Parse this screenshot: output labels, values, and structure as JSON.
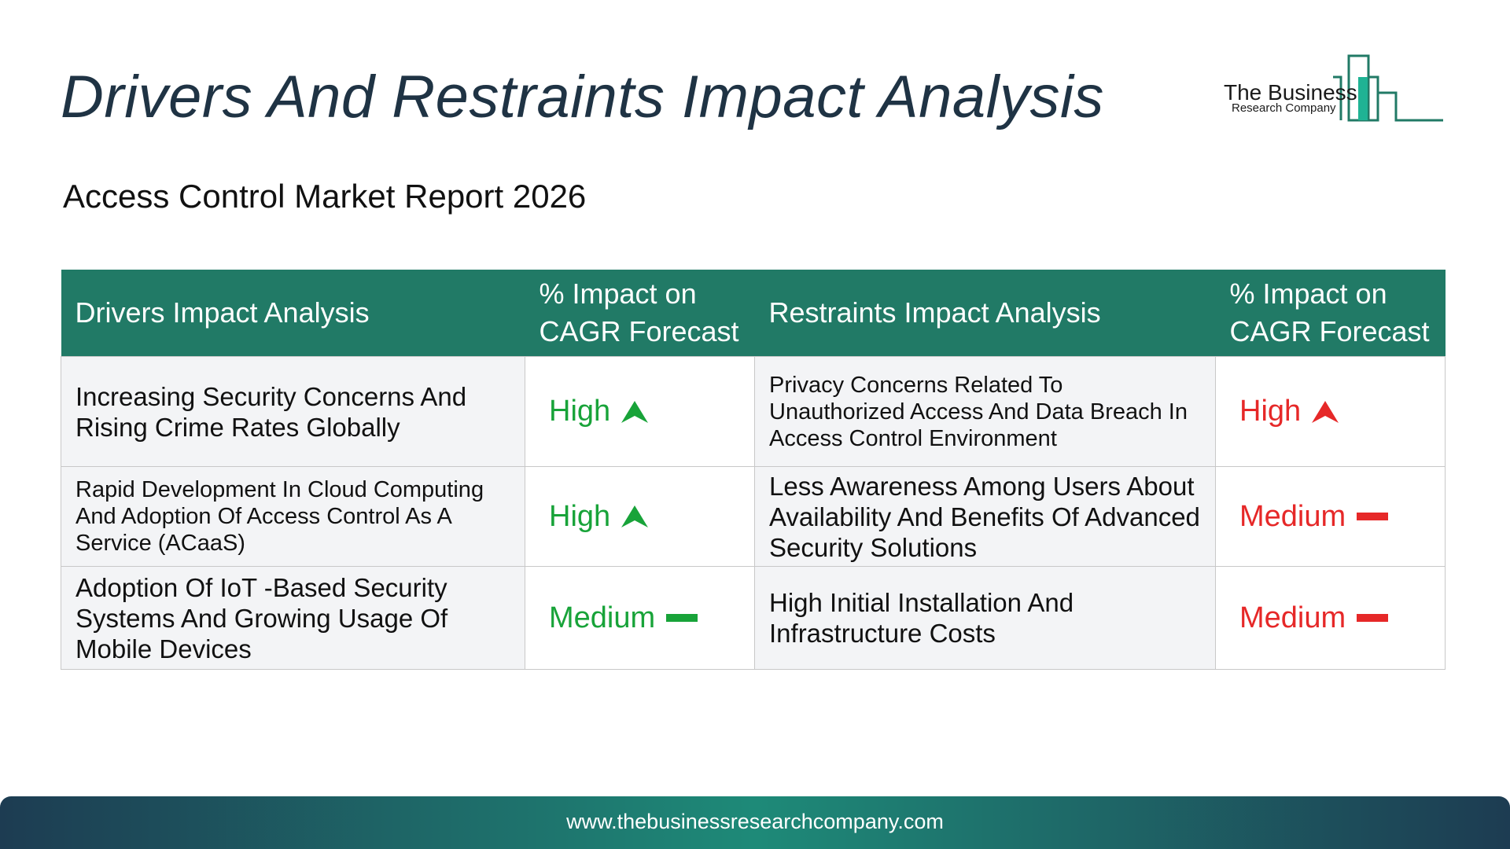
{
  "title": "Drivers And Restraints Impact Analysis",
  "subtitle": "Access Control Market Report 2026",
  "logo": {
    "name_main": "The Business",
    "name_sub": "Research Company",
    "icon": "bar-chart-logo-icon",
    "color": "#217a66"
  },
  "table": {
    "headers": [
      "Drivers Impact Analysis",
      "% Impact on CAGR Forecast",
      "Restraints Impact Analysis",
      "% Impact on CAGR Forecast"
    ],
    "rows": [
      {
        "driver": "Increasing Security Concerns And Rising Crime Rates Globally",
        "driver_impact": "High",
        "driver_impact_icon": "arrow-up-icon",
        "restraint": "Privacy Concerns Related To Unauthorized Access And Data Breach In Access Control Environment",
        "restraint_impact": "High",
        "restraint_impact_icon": "arrow-up-icon"
      },
      {
        "driver": "Rapid Development In Cloud Computing And Adoption Of Access Control As A Service (ACaaS)",
        "driver_impact": "High",
        "driver_impact_icon": "arrow-up-icon",
        "restraint": "Less Awareness Among Users About Availability And Benefits Of Advanced Security Solutions",
        "restraint_impact": "Medium",
        "restraint_impact_icon": "dash-icon"
      },
      {
        "driver": "Adoption Of IoT -Based Security Systems And Growing Usage Of Mobile Devices",
        "driver_impact": "Medium",
        "driver_impact_icon": "dash-icon",
        "restraint": "High Initial Installation And Infrastructure Costs",
        "restraint_impact": "Medium",
        "restraint_impact_icon": "dash-icon"
      }
    ]
  },
  "colors": {
    "header_bg": "#217a66",
    "driver_impact": "#18a339",
    "restraint_impact": "#e62828",
    "title": "#1f3344"
  },
  "footer": {
    "url": "www.thebusinessresearchcompany.com"
  }
}
